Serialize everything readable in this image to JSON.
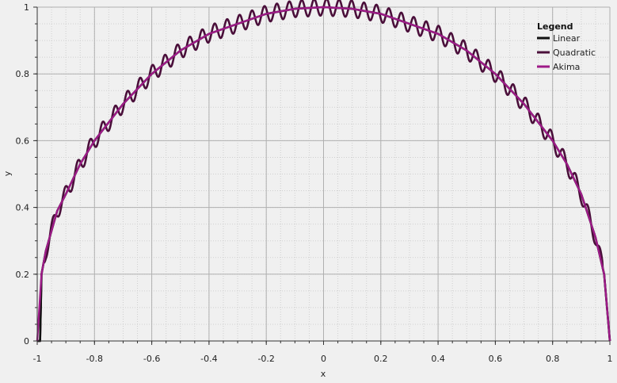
{
  "chart_data": {
    "type": "line",
    "title": "",
    "xlabel": "x",
    "ylabel": "y",
    "xlim": [
      -1,
      1
    ],
    "ylim": [
      0,
      1
    ],
    "x_ticks": [
      "-1",
      "-0.8",
      "-0.6",
      "-0.4",
      "-0.2",
      "0",
      "0.2",
      "0.4",
      "0.6",
      "0.8",
      "1"
    ],
    "y_ticks": [
      "0",
      "0.2",
      "0.4",
      "0.6",
      "0.8",
      "1"
    ],
    "grid": true,
    "background": "#f0f0f0",
    "legend": {
      "title": "Legend",
      "placement": "top-right",
      "entries": [
        "Linear",
        "Quadratic",
        "Akima"
      ]
    },
    "series": [
      {
        "name": "Linear",
        "color": "#111111",
        "points": [
          [
            -1,
            0
          ],
          [
            -0.99,
            0
          ],
          [
            -0.985,
            0.2
          ],
          [
            -0.97,
            0.27
          ],
          [
            -0.95,
            0.33
          ],
          [
            -0.93,
            0.39
          ],
          [
            -0.9,
            0.44
          ],
          [
            -0.85,
            0.53
          ],
          [
            -0.8,
            0.6
          ],
          [
            -0.7,
            0.71
          ],
          [
            -0.6,
            0.8
          ],
          [
            -0.5,
            0.87
          ],
          [
            -0.4,
            0.92
          ],
          [
            -0.3,
            0.95
          ],
          [
            -0.2,
            0.98
          ],
          [
            -0.1,
            0.995
          ],
          [
            0,
            1
          ],
          [
            0.1,
            0.995
          ],
          [
            0.2,
            0.98
          ],
          [
            0.3,
            0.95
          ],
          [
            0.4,
            0.92
          ],
          [
            0.5,
            0.87
          ],
          [
            0.6,
            0.8
          ],
          [
            0.7,
            0.71
          ],
          [
            0.8,
            0.6
          ],
          [
            0.85,
            0.53
          ],
          [
            0.9,
            0.44
          ],
          [
            0.95,
            0.31
          ],
          [
            0.98,
            0.2
          ],
          [
            1,
            0
          ]
        ]
      },
      {
        "name": "Quadratic",
        "color": "#4a0f3a",
        "wiggle_amplitude": 0.025,
        "wiggle_count": 46,
        "points": [
          [
            -1,
            0
          ],
          [
            -0.99,
            0
          ],
          [
            -0.985,
            0.2
          ],
          [
            -0.97,
            0.27
          ],
          [
            -0.95,
            0.33
          ],
          [
            -0.93,
            0.39
          ],
          [
            -0.9,
            0.44
          ],
          [
            -0.85,
            0.53
          ],
          [
            -0.8,
            0.6
          ],
          [
            -0.7,
            0.71
          ],
          [
            -0.6,
            0.8
          ],
          [
            -0.5,
            0.87
          ],
          [
            -0.4,
            0.92
          ],
          [
            -0.3,
            0.95
          ],
          [
            -0.2,
            0.98
          ],
          [
            -0.1,
            0.995
          ],
          [
            0,
            1
          ],
          [
            0.1,
            0.995
          ],
          [
            0.2,
            0.98
          ],
          [
            0.3,
            0.95
          ],
          [
            0.4,
            0.92
          ],
          [
            0.5,
            0.87
          ],
          [
            0.6,
            0.8
          ],
          [
            0.7,
            0.71
          ],
          [
            0.8,
            0.6
          ],
          [
            0.85,
            0.53
          ],
          [
            0.9,
            0.44
          ],
          [
            0.95,
            0.31
          ],
          [
            0.98,
            0.2
          ],
          [
            1,
            0
          ]
        ]
      },
      {
        "name": "Akima",
        "color": "#9e1a88",
        "points": [
          [
            -1,
            0
          ],
          [
            -0.985,
            0.2
          ],
          [
            -0.97,
            0.27
          ],
          [
            -0.95,
            0.33
          ],
          [
            -0.93,
            0.39
          ],
          [
            -0.9,
            0.44
          ],
          [
            -0.85,
            0.53
          ],
          [
            -0.8,
            0.6
          ],
          [
            -0.7,
            0.71
          ],
          [
            -0.6,
            0.8
          ],
          [
            -0.5,
            0.87
          ],
          [
            -0.4,
            0.92
          ],
          [
            -0.3,
            0.95
          ],
          [
            -0.2,
            0.98
          ],
          [
            -0.1,
            0.995
          ],
          [
            0,
            1
          ],
          [
            0.1,
            0.995
          ],
          [
            0.2,
            0.98
          ],
          [
            0.3,
            0.95
          ],
          [
            0.4,
            0.92
          ],
          [
            0.5,
            0.87
          ],
          [
            0.6,
            0.8
          ],
          [
            0.7,
            0.71
          ],
          [
            0.8,
            0.6
          ],
          [
            0.85,
            0.53
          ],
          [
            0.9,
            0.44
          ],
          [
            0.95,
            0.31
          ],
          [
            0.98,
            0.2
          ],
          [
            1,
            0
          ]
        ]
      }
    ]
  }
}
